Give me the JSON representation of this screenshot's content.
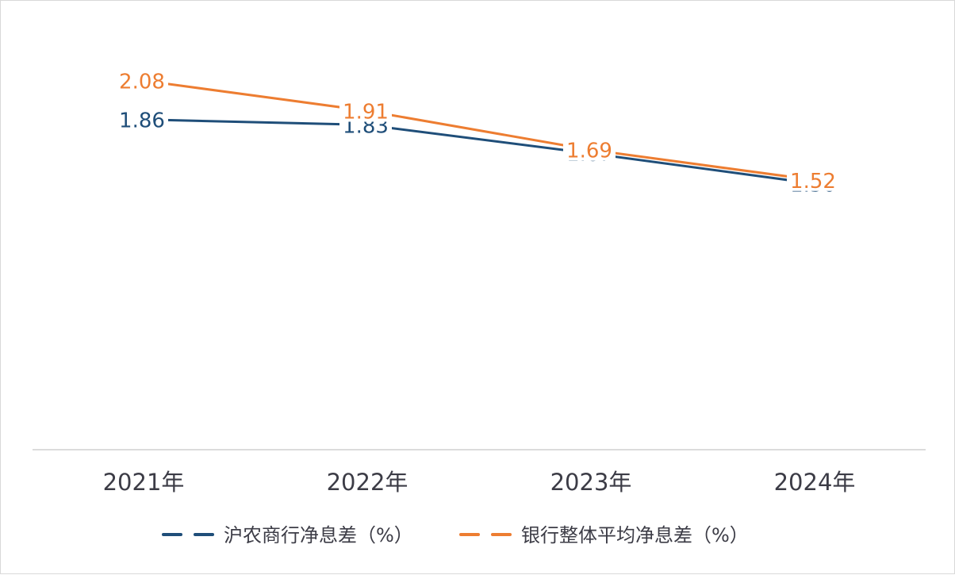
{
  "chart_data": {
    "type": "line",
    "categories": [
      "2021年",
      "2022年",
      "2023年",
      "2024年"
    ],
    "series": [
      {
        "name": "沪农商行净息差（%）",
        "values": [
          1.86,
          1.83,
          1.67,
          1.5
        ],
        "labels": [
          "1.86",
          "1.83",
          "1.67",
          "1.50"
        ],
        "color": "#1f4e79"
      },
      {
        "name": "银行整体平均净息差（%）",
        "values": [
          2.08,
          1.91,
          1.69,
          1.52
        ],
        "labels": [
          "2.08",
          "1.91",
          "1.69",
          "1.52"
        ],
        "color": "#ed7d31"
      }
    ],
    "title": "",
    "xlabel": "",
    "ylabel": "",
    "ylim": [
      0,
      2.35
    ],
    "grid": false,
    "legend": "bottom"
  }
}
